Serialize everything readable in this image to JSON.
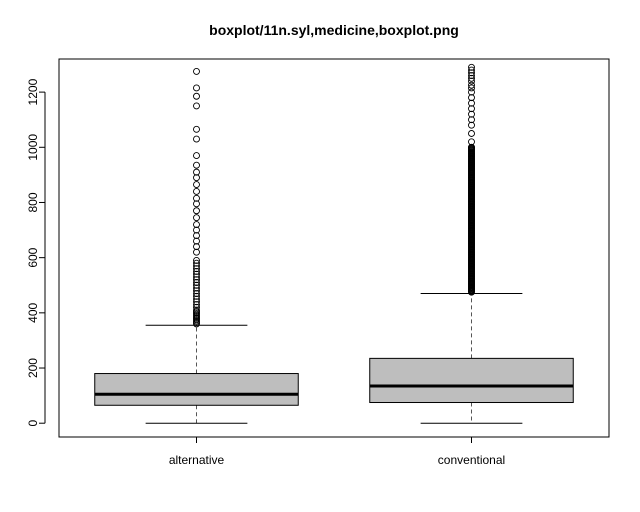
{
  "chart_data": {
    "type": "boxplot",
    "title": "boxplot/11n.syl,medicine,boxplot.png",
    "xlabel": "",
    "ylabel": "",
    "ylim": [
      -50,
      1320
    ],
    "y_ticks": [
      0,
      200,
      400,
      600,
      800,
      1000,
      1200
    ],
    "categories": [
      "alternative",
      "conventional"
    ],
    "series": [
      {
        "category": "alternative",
        "whisker_low": 0,
        "q1": 65,
        "median": 105,
        "q3": 180,
        "whisker_high": 355,
        "outliers": [
          360,
          365,
          370,
          375,
          380,
          385,
          390,
          395,
          400,
          405,
          410,
          420,
          430,
          440,
          450,
          460,
          470,
          480,
          490,
          500,
          510,
          520,
          530,
          540,
          550,
          560,
          570,
          580,
          590,
          620,
          640,
          660,
          680,
          700,
          720,
          745,
          770,
          795,
          815,
          840,
          865,
          890,
          910,
          935,
          970,
          1030,
          1065,
          1150,
          1185,
          1215,
          1275
        ]
      },
      {
        "category": "conventional",
        "whisker_low": 0,
        "q1": 75,
        "median": 135,
        "q3": 235,
        "whisker_high": 470,
        "outliers_dense_range": [
          475,
          1290
        ],
        "outliers": [
          1000,
          1020,
          1050,
          1080,
          1100,
          1120,
          1140,
          1160,
          1180,
          1200,
          1215,
          1225,
          1240,
          1250,
          1260,
          1270,
          1280,
          1290
        ]
      }
    ],
    "colors": {
      "box_fill": "#bebebe",
      "stroke": "#000000",
      "whisker": "#555555"
    }
  }
}
